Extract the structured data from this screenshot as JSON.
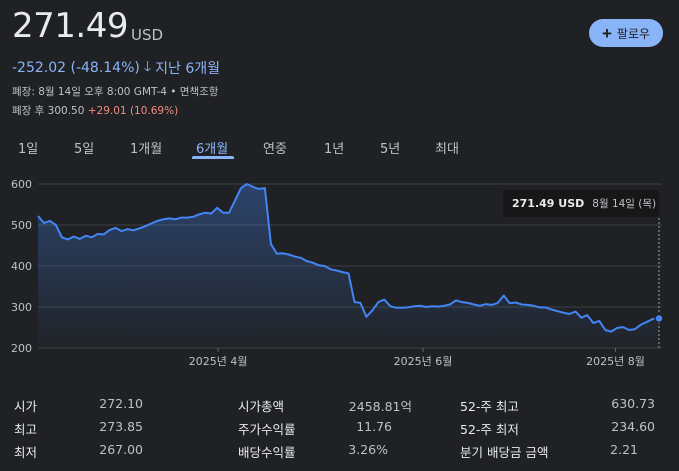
{
  "header": {
    "price": "271.49",
    "currency": "USD",
    "follow_label": "팔로우",
    "change_text": "-252.02 (-48.14%)",
    "period_text": "지난 6개월",
    "close_info": "폐장: 8월 14일 오후 8:00 GMT-4 • 면책조항",
    "after_hours_label": "폐장 후 300.50",
    "after_hours_change": "+29.01 (10.69%)"
  },
  "tabs": [
    {
      "label": "1일",
      "active": false
    },
    {
      "label": "5일",
      "active": false
    },
    {
      "label": "1개월",
      "active": false
    },
    {
      "label": "6개월",
      "active": true
    },
    {
      "label": "연중",
      "active": false
    },
    {
      "label": "1년",
      "active": false
    },
    {
      "label": "5년",
      "active": false
    },
    {
      "label": "최대",
      "active": false
    }
  ],
  "tooltip": {
    "price": "271.49 USD",
    "date": "8월 14일 (목)"
  },
  "chart_data": {
    "type": "area",
    "y_ticks": [
      200,
      300,
      400,
      500,
      600
    ],
    "y_tick_labels": [
      "200",
      "300",
      "400",
      "500",
      "600"
    ],
    "ylim": [
      200,
      600
    ],
    "x_tick_labels": [
      "2025년 4월",
      "2025년 6월",
      "2025년 8월"
    ],
    "x_tick_positions": [
      0.29,
      0.62,
      0.93
    ],
    "grid": true,
    "line_color": "#4285f4",
    "series": [
      {
        "values": [
          522,
          505,
          510,
          500,
          470,
          465,
          472,
          466,
          474,
          470,
          478,
          477,
          488,
          493,
          485,
          490,
          487,
          492,
          497,
          504,
          510,
          514,
          516,
          514,
          518,
          518,
          520,
          526,
          530,
          528,
          542,
          530,
          530,
          560,
          590,
          600,
          593,
          588,
          590,
          454,
          430,
          431,
          428,
          423,
          420,
          412,
          408,
          402,
          400,
          392,
          389,
          385,
          382,
          312,
          310,
          276,
          292,
          312,
          318,
          302,
          298,
          298,
          299,
          302,
          303,
          300,
          302,
          301,
          303,
          306,
          316,
          312,
          310,
          306,
          303,
          307,
          305,
          310,
          328,
          309,
          311,
          306,
          305,
          303,
          299,
          299,
          294,
          290,
          286,
          283,
          289,
          274,
          280,
          261,
          266,
          244,
          240,
          249,
          251,
          244,
          246,
          257,
          264,
          271,
          272
        ]
      }
    ]
  },
  "stats": {
    "col1": [
      {
        "label": "시가",
        "value": "272.10"
      },
      {
        "label": "최고",
        "value": "273.85"
      },
      {
        "label": "최저",
        "value": "267.00"
      }
    ],
    "col2": [
      {
        "label": "시가총액",
        "value": "2458.81억"
      },
      {
        "label": "주가수익률",
        "value": "11.76"
      },
      {
        "label": "배당수익률",
        "value": "3.26%"
      }
    ],
    "col3": [
      {
        "label": "52-주 최고",
        "value": "630.73"
      },
      {
        "label": "52-주 최저",
        "value": "234.60"
      },
      {
        "label": "분기 배당금 금액",
        "value": "2.21"
      }
    ]
  }
}
